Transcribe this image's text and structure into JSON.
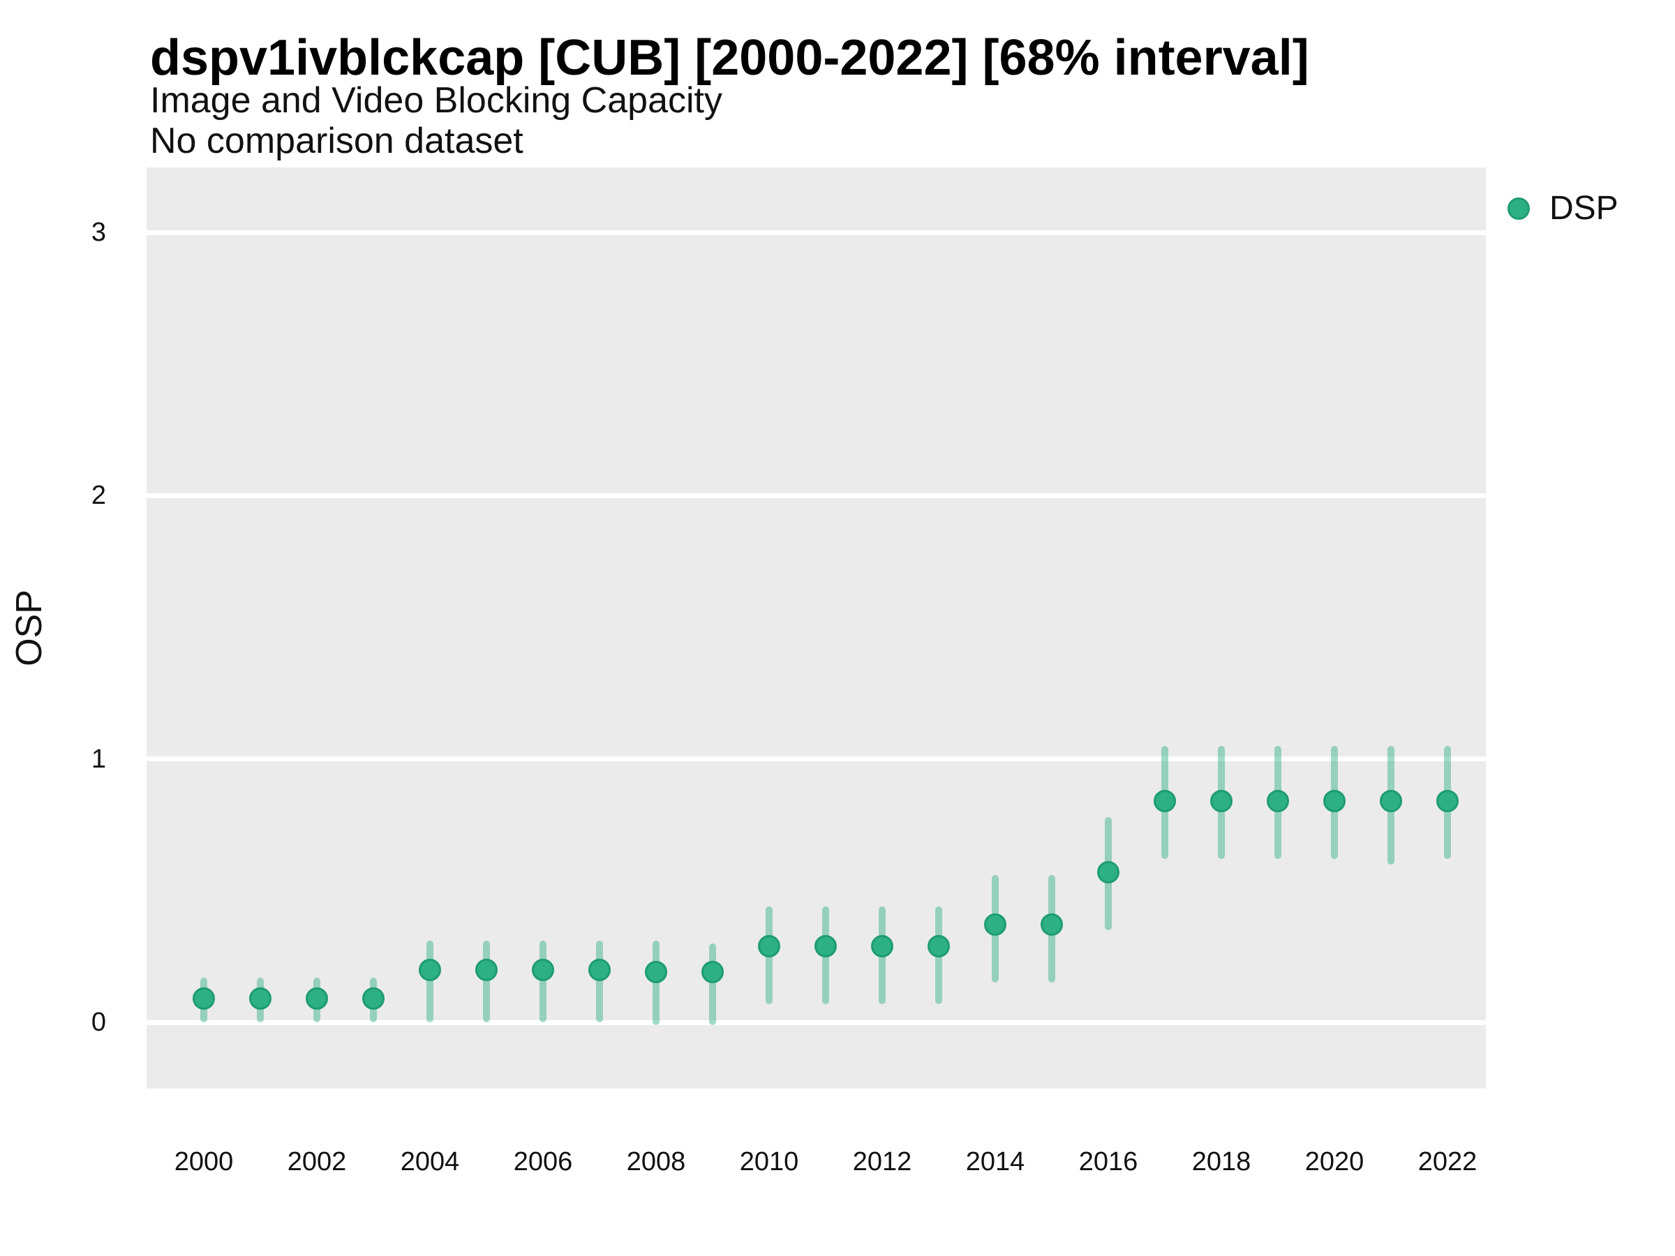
{
  "header": {
    "title": "dspv1ivblckcap [CUB] [2000-2022] [68% interval]",
    "subtitle": "Image and Video Blocking Capacity",
    "note": "No comparison dataset"
  },
  "legend": {
    "position": "right",
    "entries": [
      {
        "label": "DSP",
        "marker": "circle-icon"
      }
    ]
  },
  "colors": {
    "point_fill": "#2db083",
    "point_stroke": "#1e9c72",
    "interval_bar": "rgba(45,176,131,0.45)",
    "panel_background": "#ebebeb",
    "gridline": "#ffffff",
    "text": "#111111"
  },
  "chart_data": {
    "type": "scatter",
    "subtype": "pointrange",
    "title": "dspv1ivblckcap [CUB] [2000-2022] [68% interval]",
    "subtitle": "Image and Video Blocking Capacity",
    "note": "No comparison dataset",
    "interval": "68%",
    "xlabel": "",
    "ylabel": "OSP",
    "ylim": [
      -0.25,
      3.25
    ],
    "yticks": [
      0,
      1,
      2,
      3
    ],
    "xticks": [
      2000,
      2002,
      2004,
      2006,
      2008,
      2010,
      2012,
      2014,
      2016,
      2018,
      2020,
      2022
    ],
    "grid": "major-horizontal-only",
    "legend_position": "right",
    "series": [
      {
        "name": "DSP",
        "x": [
          2000,
          2001,
          2002,
          2003,
          2004,
          2005,
          2006,
          2007,
          2008,
          2009,
          2010,
          2011,
          2012,
          2013,
          2014,
          2015,
          2016,
          2017,
          2018,
          2019,
          2020,
          2021,
          2022
        ],
        "y": [
          0.09,
          0.09,
          0.09,
          0.09,
          0.2,
          0.2,
          0.2,
          0.2,
          0.19,
          0.19,
          0.29,
          0.29,
          0.29,
          0.29,
          0.37,
          0.37,
          0.57,
          0.84,
          0.84,
          0.84,
          0.84,
          0.84,
          0.84
        ],
        "lo": [
          0.0,
          0.0,
          0.0,
          0.0,
          0.0,
          0.0,
          0.0,
          0.0,
          -0.01,
          -0.01,
          0.07,
          0.07,
          0.07,
          0.07,
          0.15,
          0.15,
          0.35,
          0.62,
          0.62,
          0.62,
          0.62,
          0.6,
          0.62
        ],
        "hi": [
          0.17,
          0.17,
          0.17,
          0.17,
          0.31,
          0.31,
          0.31,
          0.31,
          0.31,
          0.3,
          0.44,
          0.44,
          0.44,
          0.44,
          0.56,
          0.56,
          0.78,
          1.05,
          1.05,
          1.05,
          1.05,
          1.05,
          1.05
        ]
      }
    ]
  }
}
